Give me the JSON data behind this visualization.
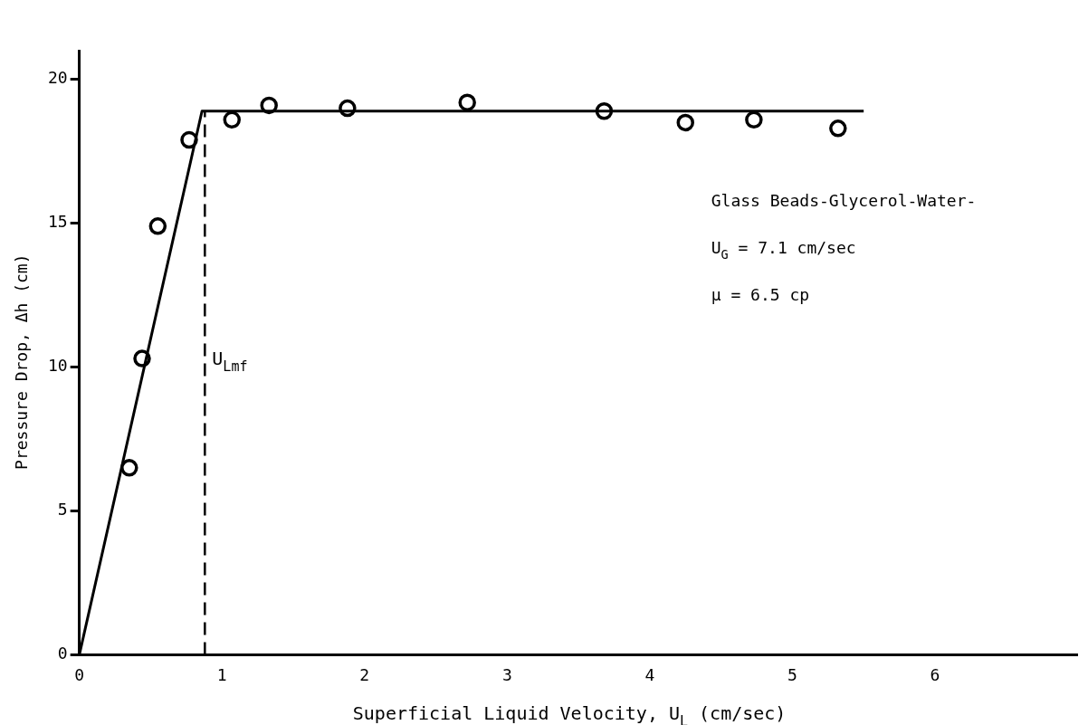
{
  "chart_data": {
    "type": "scatter",
    "xlabel": "Superficial Liquid Velocity, U$_{L}$ (cm/sec)",
    "ylabel": "Pressure Drop, Δh (cm)",
    "xlim": [
      0,
      7
    ],
    "xticks": [
      0,
      1,
      2,
      3,
      4,
      5,
      6
    ],
    "ylim": [
      0,
      21
    ],
    "yticks": [
      0,
      5,
      10,
      15,
      20
    ],
    "grid": false,
    "legend": false,
    "series": [
      {
        "marker": "circle",
        "color": "#000000",
        "x": [
          0.35,
          0.44,
          0.55,
          0.77,
          1.07,
          1.33,
          1.88,
          2.72,
          3.68,
          4.25,
          4.73,
          5.32
        ],
        "values": [
          6.5,
          10.3,
          14.9,
          17.9,
          18.6,
          19.1,
          19.0,
          19.2,
          18.9,
          18.5,
          18.6,
          18.3
        ]
      },
      {
        "type": "line",
        "marker": "none",
        "line_style": "solid",
        "color": "#000000",
        "x": [
          0,
          0.86,
          5.5
        ],
        "values": [
          0,
          18.9,
          18.9
        ]
      }
    ],
    "ref_lines": [
      {
        "axis": "x",
        "value": 0.88,
        "label": "U$_{Lmf}$",
        "line_style": "dashed",
        "color": "#000000"
      }
    ],
    "annotations": [
      "Glass Beads-Glycerol-Water-",
      "U$_{G}$ = 7.1 cm/sec",
      "μ = 6.5 cp"
    ]
  }
}
